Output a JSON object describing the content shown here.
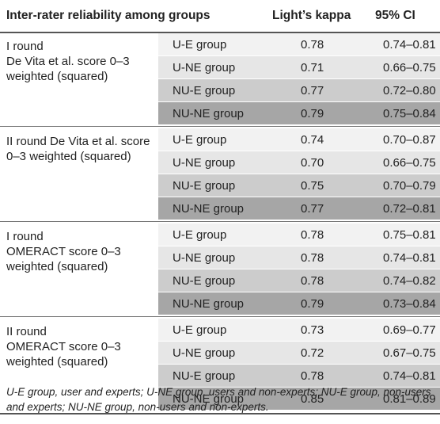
{
  "header": {
    "col1": "Inter-rater reliability among groups",
    "col2": "Light’s kappa",
    "col3": "95% CI"
  },
  "groups": [
    {
      "label": "I round\nDe Vita et al. score 0–3 weighted (squared)",
      "rows": [
        {
          "group": "U-E group",
          "kappa": "0.78",
          "ci": "0.74–0.81"
        },
        {
          "group": "U-NE group",
          "kappa": "0.71",
          "ci": "0.66–0.75"
        },
        {
          "group": "NU-E group",
          "kappa": "0.77",
          "ci": "0.72–0.80"
        },
        {
          "group": "NU-NE group",
          "kappa": "0.79",
          "ci": "0.75–0.84"
        }
      ]
    },
    {
      "label": "II round De Vita et al. score\n0–3 weighted (squared)",
      "rows": [
        {
          "group": "U-E group",
          "kappa": "0.74",
          "ci": "0.70–0.87"
        },
        {
          "group": "U-NE group",
          "kappa": "0.70",
          "ci": "0.66–0.75"
        },
        {
          "group": "NU-E group",
          "kappa": "0.75",
          "ci": "0.70–0.79"
        },
        {
          "group": "NU-NE group",
          "kappa": "0.77",
          "ci": "0.72–0.81"
        }
      ]
    },
    {
      "label": "I round\nOMERACT score 0–3 weighted (squared)",
      "rows": [
        {
          "group": "U-E group",
          "kappa": "0.78",
          "ci": "0.75–0.81"
        },
        {
          "group": "U-NE group",
          "kappa": "0.78",
          "ci": "0.74–0.81"
        },
        {
          "group": "NU-E group",
          "kappa": "0.78",
          "ci": "0.74–0.82"
        },
        {
          "group": "NU-NE group",
          "kappa": "0.79",
          "ci": "0.73–0.84"
        }
      ]
    },
    {
      "label": " II round\nOMERACT score 0–3 weighted (squared)",
      "rows": [
        {
          "group": "U-E group",
          "kappa": "0.73",
          "ci": "0.69–0.77"
        },
        {
          "group": "U-NE group",
          "kappa": "0.72",
          "ci": "0.67–0.75"
        },
        {
          "group": "NU-E group",
          "kappa": "0.78",
          "ci": "0.74–0.81"
        },
        {
          "group": "NU-NE group",
          "kappa": "0.85",
          "ci": "0.81–0.89"
        }
      ]
    }
  ],
  "footnote": "U-E group, user and experts; U-NE group, users and non-experts; NU-E group, non-users and experts; NU-NE group, non-users and non-experts."
}
